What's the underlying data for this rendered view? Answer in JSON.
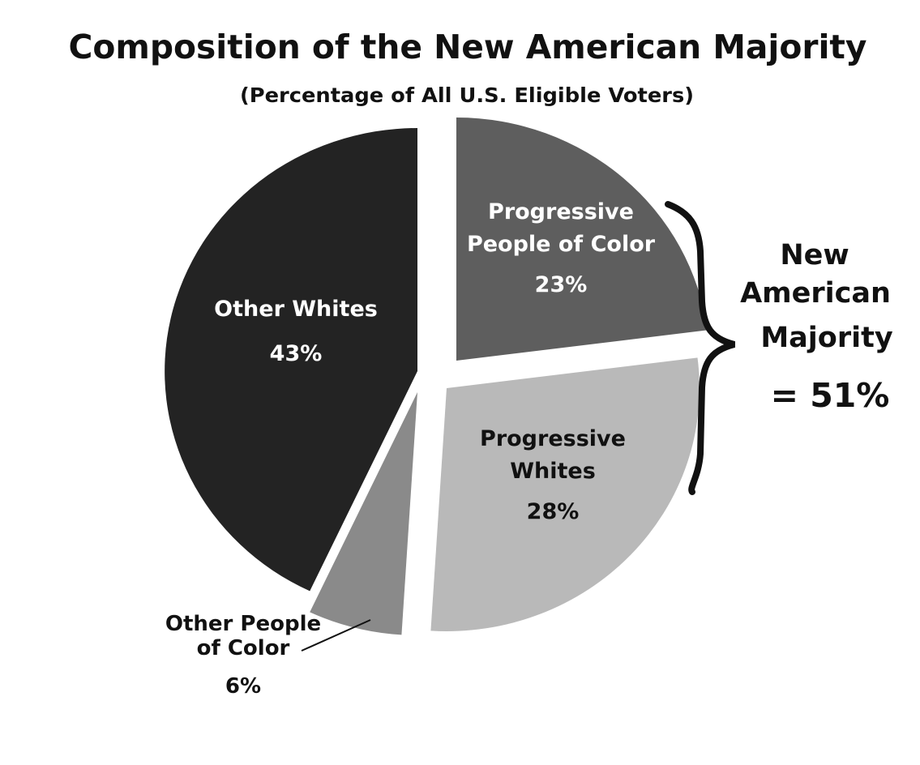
{
  "chart_data": {
    "type": "pie",
    "title": "Composition of the New American Majority",
    "subtitle": "(Percentage of All U.S. Eligible Voters)",
    "slices": [
      {
        "name": "Progressive People of Color",
        "label_lines": [
          "Progressive",
          "People of Color"
        ],
        "value": 23,
        "value_label": "23%",
        "color": "#5e5e5e",
        "text_color": "#ffffff"
      },
      {
        "name": "Progressive Whites",
        "label_lines": [
          "Progressive",
          "Whites"
        ],
        "value": 28,
        "value_label": "28%",
        "color": "#b9b9b9",
        "text_color": "#111111"
      },
      {
        "name": "Other People of Color",
        "label_lines": [
          "Other People",
          "of Color"
        ],
        "value": 6,
        "value_label": "6%",
        "color": "#8a8a8a",
        "text_color": "#111111"
      },
      {
        "name": "Other Whites",
        "label_lines": [
          "Other Whites"
        ],
        "value": 43,
        "value_label": "43%",
        "color": "#232323",
        "text_color": "#ffffff"
      }
    ],
    "group_annotation": {
      "lines": [
        "New",
        "American",
        "Majority"
      ],
      "total": "= 51%",
      "members": [
        "Progressive People of Color",
        "Progressive Whites"
      ]
    }
  }
}
